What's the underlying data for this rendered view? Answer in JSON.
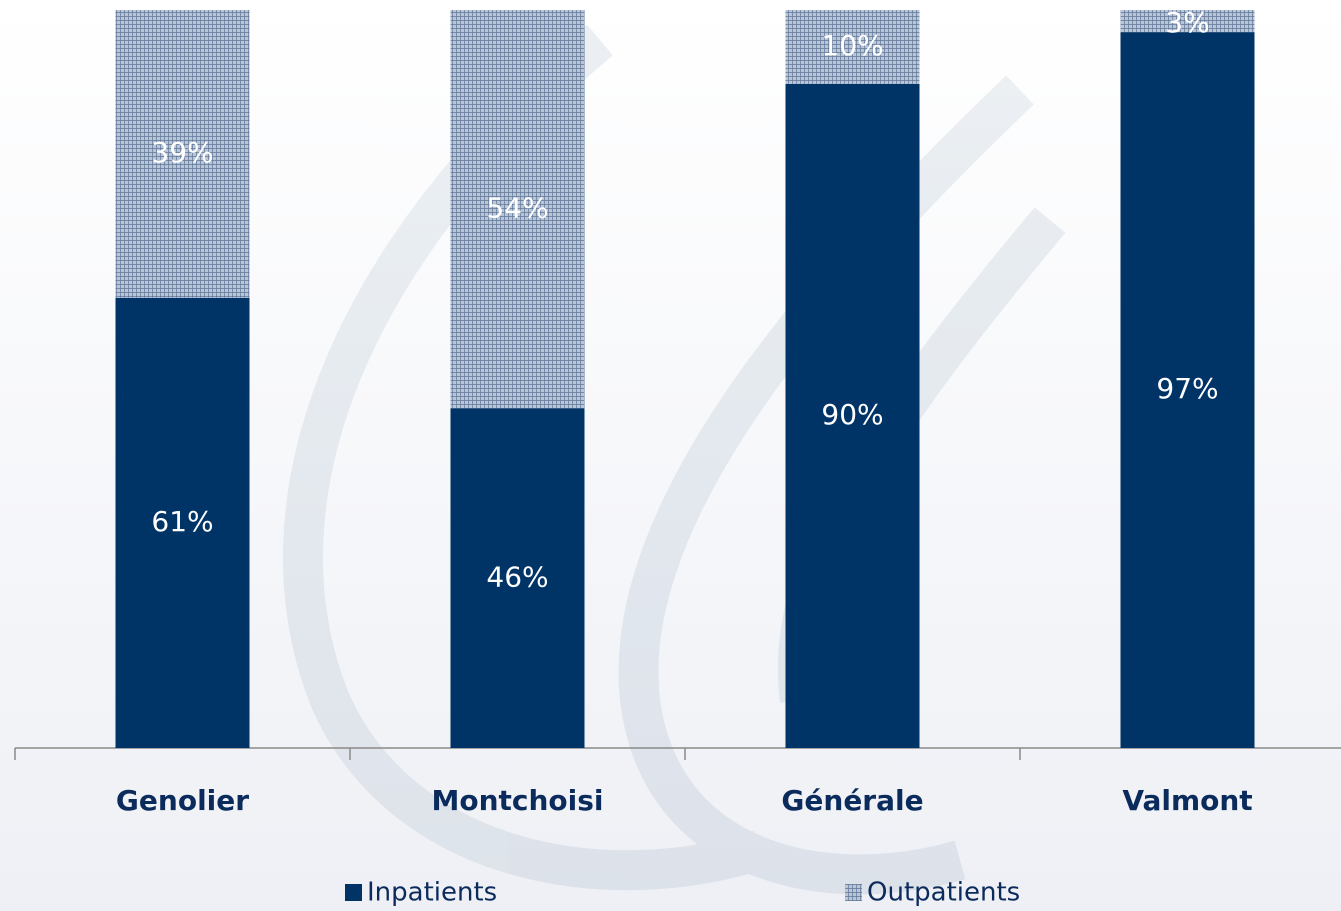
{
  "chart_data": {
    "type": "stacked_bar",
    "categories": [
      "Genolier",
      "Montchoisi",
      "Générale",
      "Valmont"
    ],
    "series": [
      {
        "name": "Inpatients",
        "color": "#003366",
        "values": [
          61,
          46,
          90,
          97
        ],
        "value_labels": [
          "61%",
          "46%",
          "90%",
          "97%"
        ]
      },
      {
        "name": "Outpatients",
        "color": "#8ea2bf",
        "values": [
          39,
          54,
          10,
          3
        ],
        "value_labels": [
          "39%",
          "54%",
          "10%",
          "3%"
        ]
      }
    ],
    "ylim": [
      0,
      100
    ]
  }
}
